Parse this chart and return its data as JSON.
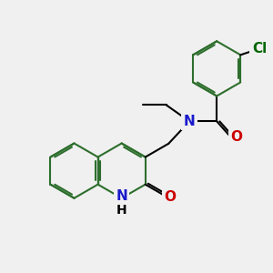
{
  "bg_color": "#f0f0f0",
  "atom_colors": {
    "C": "#000000",
    "N": "#1919cc",
    "O": "#cc0000",
    "Cl": "#006600",
    "H": "#000000"
  },
  "bond_color": "#2d6e2d",
  "bond_color_black": "#000000",
  "bond_width": 1.5,
  "font_size_atom": 10,
  "title": ""
}
